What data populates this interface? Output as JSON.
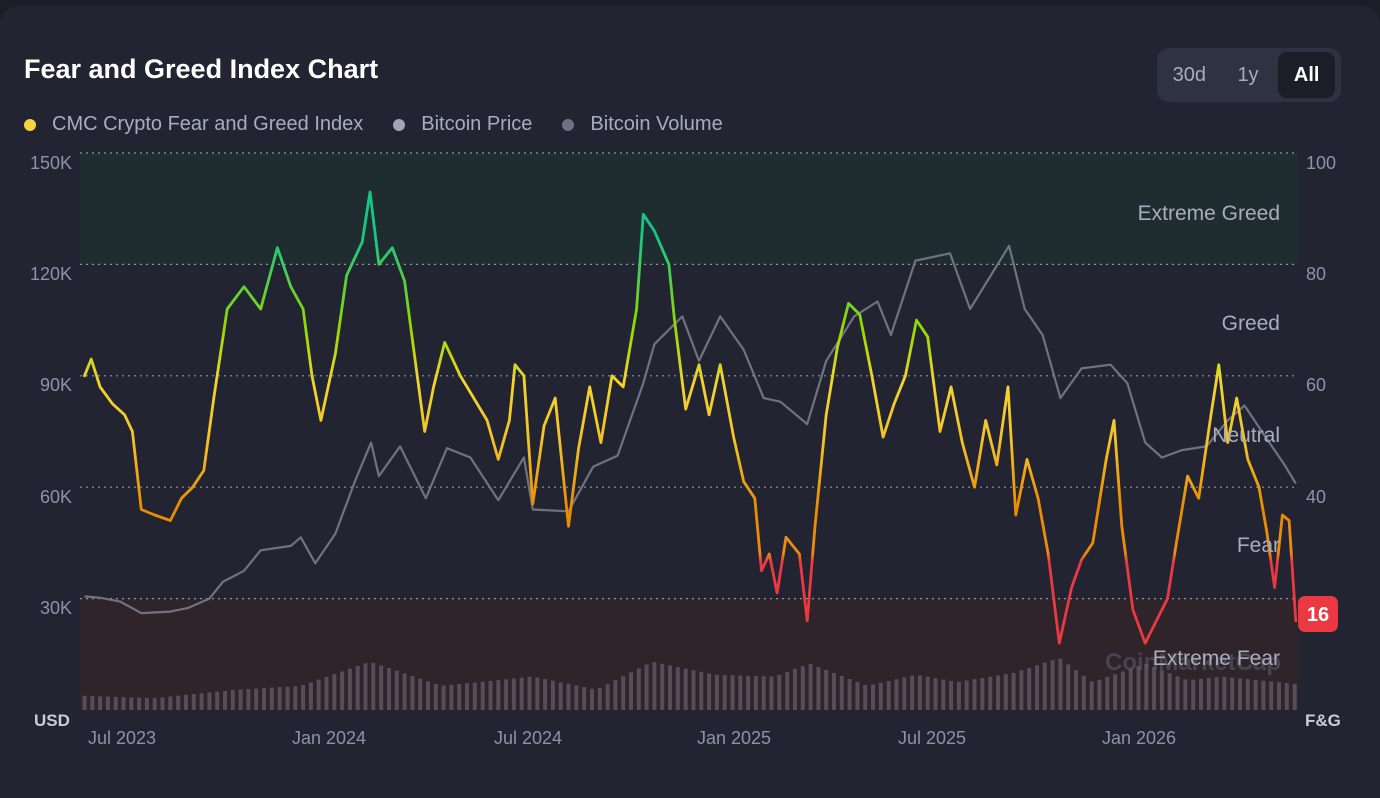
{
  "title": "Fear and Greed Index Chart",
  "range_options": [
    {
      "label": "30d",
      "active": false
    },
    {
      "label": "1y",
      "active": false
    },
    {
      "label": "All",
      "active": true
    }
  ],
  "legend": [
    {
      "label": "CMC Crypto Fear and Greed Index",
      "color": "#f5d33f"
    },
    {
      "label": "Bitcoin Price",
      "color": "#a2a5b3"
    },
    {
      "label": "Bitcoin Volume",
      "color": "#6e7282"
    }
  ],
  "watermark": "CoinMarketCap",
  "chart_data": {
    "type": "line",
    "title": "Fear and Greed Index Chart",
    "x_ticks": [
      "Jul 2023",
      "Jan 2024",
      "Jul 2024",
      "Jan 2025",
      "Jul 2025",
      "Jan 2026"
    ],
    "left_axis": {
      "unit": "USD",
      "ticks": [
        "150K",
        "120K",
        "90K",
        "60K",
        "30K"
      ],
      "range": [
        0,
        150000
      ]
    },
    "right_axis": {
      "unit": "F&G",
      "ticks": [
        "100",
        "80",
        "60",
        "40"
      ],
      "range": [
        0,
        100
      ]
    },
    "zones": [
      {
        "label": "Extreme Greed",
        "from": 80,
        "to": 100
      },
      {
        "label": "Greed",
        "from": 60,
        "to": 80
      },
      {
        "label": "Neutral",
        "from": 40,
        "to": 60
      },
      {
        "label": "Fear",
        "from": 20,
        "to": 40
      },
      {
        "label": "Extreme Fear",
        "from": 0,
        "to": 20
      }
    ],
    "grid": true,
    "current_value": "16",
    "series": [
      {
        "name": "CMC Crypto Fear and Greed Index",
        "axis": "right",
        "points": [
          [
            "2023-06-30",
            60
          ],
          [
            "2023-07-06",
            63
          ],
          [
            "2023-07-14",
            58
          ],
          [
            "2023-07-25",
            55
          ],
          [
            "2023-08-05",
            53
          ],
          [
            "2023-08-12",
            50
          ],
          [
            "2023-08-20",
            36
          ],
          [
            "2023-09-01",
            35
          ],
          [
            "2023-09-15",
            34
          ],
          [
            "2023-09-25",
            38
          ],
          [
            "2023-10-05",
            40
          ],
          [
            "2023-10-15",
            43
          ],
          [
            "2023-10-24",
            56
          ],
          [
            "2023-11-05",
            72
          ],
          [
            "2023-11-20",
            76
          ],
          [
            "2023-12-05",
            72
          ],
          [
            "2023-12-20",
            83
          ],
          [
            "2024-01-01",
            76
          ],
          [
            "2024-01-12",
            72
          ],
          [
            "2024-01-20",
            60
          ],
          [
            "2024-01-28",
            52
          ],
          [
            "2024-02-10",
            64
          ],
          [
            "2024-02-20",
            78
          ],
          [
            "2024-03-05",
            84
          ],
          [
            "2024-03-12",
            93
          ],
          [
            "2024-03-20",
            80
          ],
          [
            "2024-04-01",
            83
          ],
          [
            "2024-04-12",
            77
          ],
          [
            "2024-04-20",
            65
          ],
          [
            "2024-04-30",
            50
          ],
          [
            "2024-05-08",
            58
          ],
          [
            "2024-05-18",
            66
          ],
          [
            "2024-06-01",
            60
          ],
          [
            "2024-06-10",
            57
          ],
          [
            "2024-06-25",
            52
          ],
          [
            "2024-07-05",
            45
          ],
          [
            "2024-07-15",
            52
          ],
          [
            "2024-07-20",
            62
          ],
          [
            "2024-07-28",
            60
          ],
          [
            "2024-08-05",
            37
          ],
          [
            "2024-08-15",
            51
          ],
          [
            "2024-08-25",
            56
          ],
          [
            "2024-09-06",
            33
          ],
          [
            "2024-09-15",
            47
          ],
          [
            "2024-09-25",
            58
          ],
          [
            "2024-10-05",
            48
          ],
          [
            "2024-10-15",
            60
          ],
          [
            "2024-10-25",
            58
          ],
          [
            "2024-11-06",
            72
          ],
          [
            "2024-11-12",
            89
          ],
          [
            "2024-11-22",
            86
          ],
          [
            "2024-12-05",
            80
          ],
          [
            "2024-12-10",
            70
          ],
          [
            "2024-12-20",
            54
          ],
          [
            "2025-01-01",
            62
          ],
          [
            "2025-01-10",
            53
          ],
          [
            "2025-01-20",
            62
          ],
          [
            "2025-02-01",
            49
          ],
          [
            "2025-02-10",
            41
          ],
          [
            "2025-02-20",
            38
          ],
          [
            "2025-02-26",
            25
          ],
          [
            "2025-03-05",
            28
          ],
          [
            "2025-03-12",
            21
          ],
          [
            "2025-03-20",
            31
          ],
          [
            "2025-04-01",
            28
          ],
          [
            "2025-04-08",
            16
          ],
          [
            "2025-04-15",
            33
          ],
          [
            "2025-04-25",
            53
          ],
          [
            "2025-05-05",
            65
          ],
          [
            "2025-05-15",
            73
          ],
          [
            "2025-05-25",
            71
          ],
          [
            "2025-06-05",
            60
          ],
          [
            "2025-06-15",
            49
          ],
          [
            "2025-06-25",
            55
          ],
          [
            "2025-07-05",
            60
          ],
          [
            "2025-07-15",
            70
          ],
          [
            "2025-07-25",
            67
          ],
          [
            "2025-08-05",
            50
          ],
          [
            "2025-08-15",
            58
          ],
          [
            "2025-08-25",
            48
          ],
          [
            "2025-09-05",
            40
          ],
          [
            "2025-09-15",
            52
          ],
          [
            "2025-09-25",
            44
          ],
          [
            "2025-10-05",
            58
          ],
          [
            "2025-10-12",
            35
          ],
          [
            "2025-10-22",
            45
          ],
          [
            "2025-11-01",
            38
          ],
          [
            "2025-11-10",
            28
          ],
          [
            "2025-11-20",
            12
          ],
          [
            "2025-12-01",
            22
          ],
          [
            "2025-12-10",
            27
          ],
          [
            "2025-12-20",
            30
          ],
          [
            "2026-01-01",
            45
          ],
          [
            "2026-01-08",
            52
          ],
          [
            "2026-01-15",
            33
          ],
          [
            "2026-01-25",
            18
          ],
          [
            "2026-02-05",
            12
          ],
          [
            "2026-02-15",
            16
          ],
          [
            "2026-02-25",
            20
          ],
          [
            "2026-03-05",
            30
          ],
          [
            "2026-03-15",
            42
          ],
          [
            "2026-03-25",
            38
          ],
          [
            "2026-04-05",
            53
          ],
          [
            "2026-04-12",
            62
          ],
          [
            "2026-04-20",
            48
          ],
          [
            "2026-04-28",
            56
          ],
          [
            "2026-05-08",
            45
          ],
          [
            "2026-05-18",
            40
          ],
          [
            "2026-05-25",
            32
          ],
          [
            "2026-06-01",
            22
          ],
          [
            "2026-06-08",
            35
          ],
          [
            "2026-06-14",
            34
          ],
          [
            "2026-06-20",
            16
          ]
        ]
      },
      {
        "name": "Bitcoin Price",
        "axis": "left",
        "points": [
          [
            "2023-06-30",
            30600
          ],
          [
            "2023-07-15",
            30200
          ],
          [
            "2023-08-01",
            29200
          ],
          [
            "2023-08-20",
            26100
          ],
          [
            "2023-09-15",
            26500
          ],
          [
            "2023-10-01",
            27500
          ],
          [
            "2023-10-20",
            30000
          ],
          [
            "2023-11-01",
            34500
          ],
          [
            "2023-11-20",
            37500
          ],
          [
            "2023-12-05",
            43000
          ],
          [
            "2024-01-01",
            44200
          ],
          [
            "2024-01-10",
            46500
          ],
          [
            "2024-01-23",
            39500
          ],
          [
            "2024-02-10",
            47500
          ],
          [
            "2024-02-28",
            62000
          ],
          [
            "2024-03-13",
            72000
          ],
          [
            "2024-03-20",
            63000
          ],
          [
            "2024-04-08",
            71000
          ],
          [
            "2024-05-01",
            57000
          ],
          [
            "2024-05-20",
            70500
          ],
          [
            "2024-06-10",
            68000
          ],
          [
            "2024-07-05",
            56500
          ],
          [
            "2024-07-28",
            68000
          ],
          [
            "2024-08-05",
            54000
          ],
          [
            "2024-09-06",
            53500
          ],
          [
            "2024-09-28",
            65500
          ],
          [
            "2024-10-20",
            68500
          ],
          [
            "2024-11-12",
            88000
          ],
          [
            "2024-11-22",
            98500
          ],
          [
            "2024-12-17",
            106000
          ],
          [
            "2025-01-01",
            94000
          ],
          [
            "2025-01-20",
            106000
          ],
          [
            "2025-02-10",
            97000
          ],
          [
            "2025-02-28",
            84000
          ],
          [
            "2025-03-15",
            83000
          ],
          [
            "2025-04-08",
            77000
          ],
          [
            "2025-04-25",
            94000
          ],
          [
            "2025-05-20",
            106000
          ],
          [
            "2025-06-10",
            110000
          ],
          [
            "2025-06-22",
            101000
          ],
          [
            "2025-07-14",
            121000
          ],
          [
            "2025-08-14",
            123000
          ],
          [
            "2025-09-01",
            108000
          ],
          [
            "2025-10-06",
            125000
          ],
          [
            "2025-10-20",
            108000
          ],
          [
            "2025-11-05",
            101000
          ],
          [
            "2025-11-21",
            84000
          ],
          [
            "2025-12-10",
            92000
          ],
          [
            "2026-01-05",
            93000
          ],
          [
            "2026-01-20",
            88000
          ],
          [
            "2026-02-05",
            72000
          ],
          [
            "2026-02-20",
            68000
          ],
          [
            "2026-03-10",
            70000
          ],
          [
            "2026-04-01",
            71000
          ],
          [
            "2026-04-20",
            78000
          ],
          [
            "2026-05-05",
            82000
          ],
          [
            "2026-05-25",
            73000
          ],
          [
            "2026-06-10",
            66000
          ],
          [
            "2026-06-20",
            61000
          ]
        ]
      },
      {
        "name": "Bitcoin Volume",
        "axis": "left",
        "points": [
          [
            "2023-06-30",
            3800
          ],
          [
            "2023-09-01",
            3200
          ],
          [
            "2023-11-15",
            5500
          ],
          [
            "2024-01-10",
            6500
          ],
          [
            "2024-03-12",
            13000
          ],
          [
            "2024-05-15",
            6500
          ],
          [
            "2024-08-05",
            9000
          ],
          [
            "2024-10-01",
            5500
          ],
          [
            "2024-11-20",
            13000
          ],
          [
            "2025-01-15",
            9500
          ],
          [
            "2025-03-10",
            9000
          ],
          [
            "2025-04-10",
            12500
          ],
          [
            "2025-06-01",
            6500
          ],
          [
            "2025-07-15",
            9500
          ],
          [
            "2025-08-20",
            7500
          ],
          [
            "2025-10-10",
            10000
          ],
          [
            "2025-11-20",
            14000
          ],
          [
            "2025-12-20",
            7500
          ],
          [
            "2026-02-05",
            12500
          ],
          [
            "2026-03-15",
            8000
          ],
          [
            "2026-04-15",
            9000
          ],
          [
            "2026-06-20",
            7000
          ]
        ]
      }
    ]
  }
}
